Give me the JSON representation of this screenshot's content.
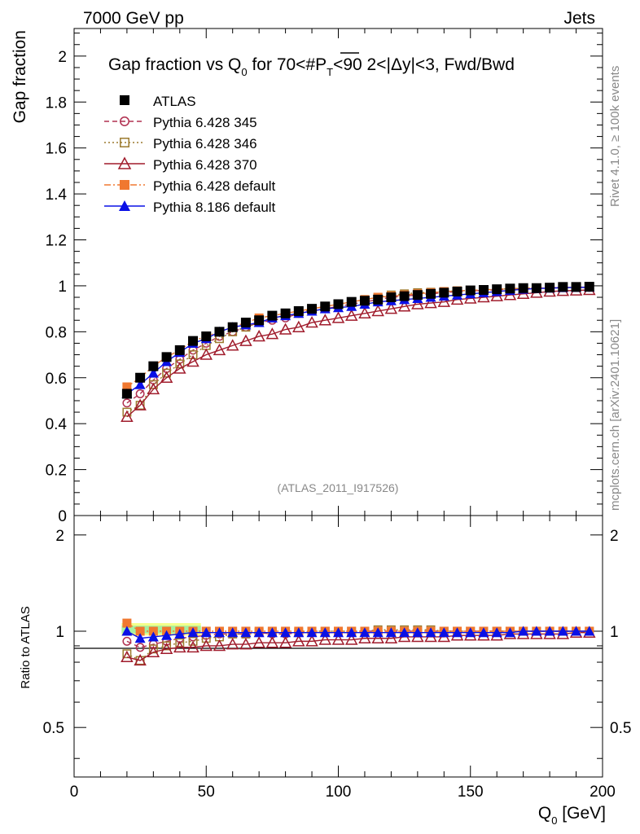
{
  "header": {
    "left": "7000 GeV pp",
    "right": "Jets"
  },
  "side_text": {
    "rivet": "Rivet 4.1.0, ≥ 100k events",
    "mcplots": "mcplots.cern.ch [arXiv:2401.10621]"
  },
  "chart_data": [
    {
      "type": "scatter",
      "panel": "main",
      "title_parts": {
        "a": "Gap fraction vs Q",
        "a_sub": "0",
        "b": " for 70<#",
        "p": "P",
        "p_sub": "T",
        "c": "<90  2<|Δy|<3, Fwd/Bwd"
      },
      "ylabel": "Gap fraction",
      "xlabel_main": "Q",
      "xlabel_sub": "0",
      "xlabel_unit": " [GeV]",
      "xlim": [
        0,
        200
      ],
      "ylim": [
        0,
        2.12
      ],
      "xticks": [
        0,
        50,
        100,
        150,
        200
      ],
      "yticks": [
        0,
        0.2,
        0.4,
        0.6,
        0.8,
        1,
        1.2,
        1.4,
        1.6,
        1.8,
        2
      ],
      "ytick_labels": [
        "0",
        "0.2",
        "0.4",
        "0.6",
        "0.8",
        "1",
        "1.2",
        "1.4",
        "1.6",
        "1.8",
        "2"
      ],
      "watermark": "(ATLAS_2011_I917526)",
      "x": [
        20,
        25,
        30,
        35,
        40,
        45,
        50,
        55,
        60,
        65,
        70,
        75,
        80,
        85,
        90,
        95,
        100,
        105,
        110,
        115,
        120,
        125,
        130,
        135,
        140,
        145,
        150,
        155,
        160,
        165,
        170,
        175,
        180,
        185,
        190,
        195
      ],
      "series": [
        {
          "name": "ATLAS",
          "color": "#000000",
          "marker": "square-filled",
          "line": "none",
          "values": [
            0.53,
            0.6,
            0.65,
            0.69,
            0.72,
            0.76,
            0.78,
            0.8,
            0.82,
            0.84,
            0.85,
            0.87,
            0.88,
            0.89,
            0.9,
            0.91,
            0.92,
            0.93,
            0.935,
            0.94,
            0.95,
            0.955,
            0.96,
            0.965,
            0.97,
            0.975,
            0.98,
            0.982,
            0.985,
            0.988,
            0.99,
            0.99,
            0.992,
            0.995,
            0.995,
            0.996
          ]
        },
        {
          "name": "Pythia 6.428 345",
          "color": "#b03050",
          "marker": "circle-open",
          "line": "dashed",
          "values": [
            0.49,
            0.53,
            0.59,
            0.64,
            0.68,
            0.72,
            0.75,
            0.78,
            0.8,
            0.82,
            0.84,
            0.85,
            0.86,
            0.88,
            0.89,
            0.9,
            0.91,
            0.92,
            0.93,
            0.94,
            0.95,
            0.955,
            0.96,
            0.965,
            0.97,
            0.975,
            0.978,
            0.98,
            0.983,
            0.985,
            0.988,
            0.99,
            0.99,
            0.992,
            0.993,
            0.993
          ]
        },
        {
          "name": "Pythia 6.428 346",
          "color": "#9c7a2e",
          "marker": "square-open",
          "line": "dotted",
          "values": [
            0.45,
            0.48,
            0.57,
            0.62,
            0.66,
            0.7,
            0.74,
            0.77,
            0.8,
            0.82,
            0.84,
            0.86,
            0.87,
            0.88,
            0.9,
            0.91,
            0.92,
            0.93,
            0.94,
            0.95,
            0.96,
            0.965,
            0.97,
            0.972,
            0.975,
            0.978,
            0.98,
            0.983,
            0.985,
            0.987,
            0.99,
            0.99,
            0.992,
            0.993,
            0.994,
            0.994
          ]
        },
        {
          "name": "Pythia 6.428 370",
          "color": "#a01c2c",
          "marker": "triangle-open",
          "line": "solid",
          "values": [
            0.43,
            0.48,
            0.55,
            0.6,
            0.64,
            0.67,
            0.7,
            0.72,
            0.74,
            0.76,
            0.78,
            0.79,
            0.81,
            0.82,
            0.84,
            0.85,
            0.86,
            0.87,
            0.88,
            0.89,
            0.9,
            0.91,
            0.92,
            0.925,
            0.93,
            0.94,
            0.945,
            0.95,
            0.955,
            0.96,
            0.965,
            0.97,
            0.975,
            0.978,
            0.98,
            0.982
          ]
        },
        {
          "name": "Pythia 6.428 default",
          "color": "#f07830",
          "marker": "square-filled",
          "line": "dashdot",
          "values": [
            0.56,
            0.6,
            0.65,
            0.69,
            0.72,
            0.76,
            0.78,
            0.8,
            0.82,
            0.84,
            0.86,
            0.87,
            0.88,
            0.89,
            0.9,
            0.91,
            0.92,
            0.93,
            0.94,
            0.95,
            0.955,
            0.96,
            0.965,
            0.97,
            0.975,
            0.978,
            0.98,
            0.983,
            0.985,
            0.988,
            0.99,
            0.99,
            0.992,
            0.993,
            0.994,
            0.995
          ]
        },
        {
          "name": "Pythia 8.186 default",
          "color": "#0a10e6",
          "marker": "triangle-filled",
          "line": "solid",
          "values": [
            0.53,
            0.57,
            0.62,
            0.67,
            0.71,
            0.75,
            0.77,
            0.8,
            0.82,
            0.83,
            0.84,
            0.86,
            0.87,
            0.88,
            0.89,
            0.9,
            0.905,
            0.91,
            0.92,
            0.93,
            0.935,
            0.94,
            0.945,
            0.95,
            0.955,
            0.96,
            0.965,
            0.97,
            0.975,
            0.98,
            0.985,
            0.988,
            0.99,
            0.992,
            0.993,
            0.994
          ]
        }
      ]
    },
    {
      "type": "scatter",
      "panel": "ratio",
      "ylabel": "Ratio to ATLAS",
      "xlim": [
        0,
        200
      ],
      "ylim": [
        0.35,
        2.3
      ],
      "yscale": "log",
      "yticks": [
        0.5,
        1,
        2
      ],
      "ytick_labels": [
        "0.5",
        "1",
        "2"
      ],
      "xtick_labels": [
        "0",
        "50",
        "100",
        "150",
        "200"
      ],
      "band": {
        "x": [
          18,
          48
        ],
        "low": 0.97,
        "high": 1.06,
        "inner_low": 0.985,
        "inner_high": 1.04
      },
      "series": [
        {
          "name": "Pythia 6.428 345",
          "values": [
            0.93,
            0.89,
            0.91,
            0.93,
            0.95,
            0.96,
            0.97,
            0.98,
            0.98,
            0.98,
            0.99,
            0.98,
            0.98,
            0.99,
            0.99,
            0.99,
            0.99,
            0.99,
            1.0,
            1.0,
            1.0,
            1.0,
            1.0,
            1.0,
            1.0,
            1.0,
            1.0,
            1.0,
            1.0,
            1.0,
            1.0,
            1.0,
            1.0,
            1.0,
            1.0,
            1.0
          ]
        },
        {
          "name": "Pythia 6.428 346",
          "values": [
            0.85,
            0.81,
            0.88,
            0.9,
            0.92,
            0.93,
            0.95,
            0.96,
            0.98,
            0.98,
            0.99,
            0.99,
            0.99,
            0.99,
            1.0,
            1.0,
            1.0,
            1.0,
            1.0,
            1.01,
            1.01,
            1.01,
            1.01,
            1.01,
            1.0,
            1.0,
            1.0,
            1.0,
            1.0,
            1.0,
            1.0,
            1.0,
            1.0,
            1.0,
            1.0,
            1.0
          ]
        },
        {
          "name": "Pythia 6.428 370",
          "values": [
            0.83,
            0.81,
            0.86,
            0.88,
            0.89,
            0.89,
            0.9,
            0.9,
            0.91,
            0.91,
            0.92,
            0.92,
            0.92,
            0.93,
            0.93,
            0.94,
            0.94,
            0.94,
            0.95,
            0.95,
            0.95,
            0.96,
            0.96,
            0.96,
            0.96,
            0.97,
            0.97,
            0.97,
            0.97,
            0.98,
            0.98,
            0.98,
            0.98,
            0.98,
            0.99,
            0.99
          ]
        },
        {
          "name": "Pythia 6.428 default",
          "values": [
            1.06,
            1.0,
            1.0,
            1.0,
            1.0,
            1.0,
            1.0,
            1.0,
            1.0,
            1.0,
            1.0,
            1.0,
            1.0,
            1.0,
            1.0,
            1.0,
            1.0,
            1.0,
            1.0,
            1.0,
            1.0,
            1.0,
            1.0,
            1.0,
            1.0,
            1.0,
            1.0,
            1.0,
            1.0,
            1.0,
            1.0,
            1.0,
            1.0,
            1.0,
            1.0,
            1.0
          ]
        },
        {
          "name": "Pythia 8.186 default",
          "values": [
            1.0,
            0.95,
            0.96,
            0.97,
            0.98,
            0.99,
            0.99,
            0.99,
            0.99,
            0.99,
            0.99,
            0.99,
            0.99,
            0.99,
            0.99,
            0.99,
            0.99,
            0.99,
            0.99,
            0.99,
            0.99,
            0.99,
            0.99,
            0.99,
            0.99,
            0.99,
            0.99,
            0.99,
            0.99,
            0.99,
            1.0,
            1.0,
            1.0,
            1.0,
            1.0,
            1.0
          ]
        }
      ]
    }
  ]
}
